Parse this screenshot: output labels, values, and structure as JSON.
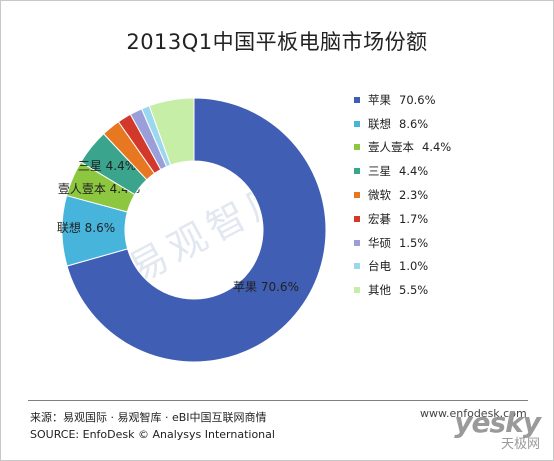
{
  "title": "2013Q1中国平板电脑市场份额",
  "watermark": "易观智库",
  "chart_data": {
    "type": "pie",
    "donut": true,
    "title": "2013Q1中国平板电脑市场份额",
    "legend_position": "right",
    "slices": [
      {
        "name": "苹果",
        "value": 70.6,
        "label": "70.6%",
        "color": "#3f5eb4",
        "slice_label": "苹果  70.6%"
      },
      {
        "name": "联想",
        "value": 8.6,
        "label": "8.6%",
        "color": "#47b4dc",
        "slice_label": "联想  8.6%"
      },
      {
        "name": "壹人壹本",
        "value": 4.4,
        "label": "4.4%",
        "color": "#8dc63f",
        "slice_label": "壹人壹本  4.4%"
      },
      {
        "name": "三星",
        "value": 4.4,
        "label": "4.4%",
        "color": "#3aa58c",
        "slice_label": "三星  4.4%"
      },
      {
        "name": "微软",
        "value": 2.3,
        "label": "2.3%",
        "color": "#e87722",
        "slice_label": ""
      },
      {
        "name": "宏碁",
        "value": 1.7,
        "label": "1.7%",
        "color": "#d2392b",
        "slice_label": ""
      },
      {
        "name": "华硕",
        "value": 1.5,
        "label": "1.5%",
        "color": "#9a9fd9",
        "slice_label": ""
      },
      {
        "name": "台电",
        "value": 1.0,
        "label": "1.0%",
        "color": "#9cd7f0",
        "slice_label": ""
      },
      {
        "name": "其他",
        "value": 5.5,
        "label": "5.5%",
        "color": "#c6eea6",
        "slice_label": ""
      }
    ]
  },
  "footer": {
    "source_cn": "来源：易观国际 · 易观智库 · eBI中国互联网商情",
    "source_en": "SOURCE: EnfoDesk © Analysys International",
    "url": "www.enfodesk.com"
  },
  "logo": {
    "main": "yesky",
    "sub": "天极网"
  }
}
